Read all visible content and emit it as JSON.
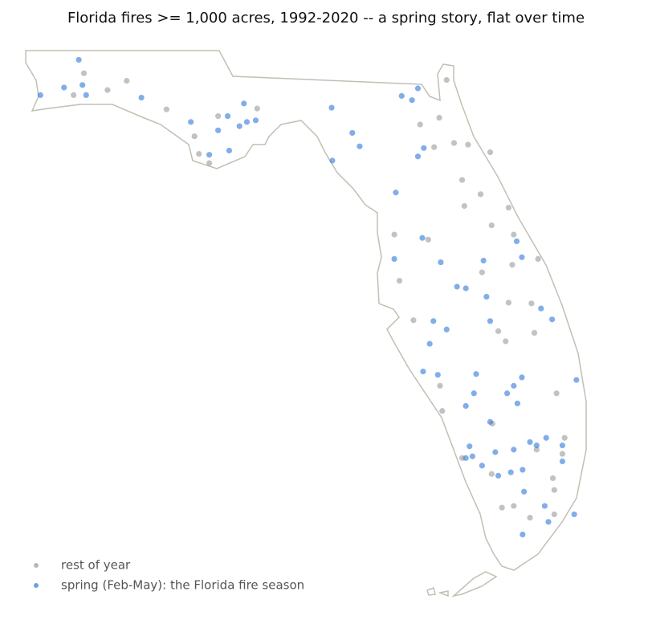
{
  "chart_data": {
    "type": "scatter",
    "title": "Florida fires >= 1,000 acres, 1992-2020 -- a spring story, flat over time",
    "xlim": [
      -87.7,
      -79.9
    ],
    "ylim": [
      24.4,
      31.1
    ],
    "legend": "lower left",
    "series": [
      {
        "name": "rest of year",
        "color": "#9a9a9a",
        "x": [
          -86.95,
          -86.81,
          -86.23,
          -86.49,
          -85.69,
          -85.31,
          -84.99,
          -85.25,
          -85.11,
          -84.46,
          -81.89,
          -82.25,
          -81.99,
          -81.79,
          -81.6,
          -82.06,
          -81.3,
          -81.68,
          -81.43,
          -81.05,
          -81.65,
          -81.28,
          -80.98,
          -80.65,
          -81.0,
          -81.41,
          -82.14,
          -82.6,
          -82.53,
          -82.34,
          -81.05,
          -80.74,
          -81.19,
          -80.7,
          -81.09,
          -81.98,
          -81.95,
          -81.27,
          -80.4,
          -80.32,
          -80.45,
          -80.43,
          -80.98,
          -81.14,
          -80.76,
          -81.28,
          -80.43,
          -80.67,
          -81.68,
          -80.29
        ],
        "y": [
          30.47,
          30.73,
          30.64,
          30.53,
          30.3,
          29.98,
          30.22,
          29.77,
          29.66,
          30.31,
          30.65,
          30.12,
          30.2,
          29.9,
          29.88,
          29.85,
          29.79,
          29.46,
          29.29,
          29.13,
          29.15,
          28.92,
          28.81,
          28.52,
          28.45,
          28.36,
          28.75,
          28.81,
          28.26,
          27.79,
          28.0,
          27.99,
          27.66,
          27.64,
          27.54,
          27.01,
          26.71,
          26.56,
          26.92,
          26.2,
          25.91,
          25.77,
          25.58,
          25.56,
          25.44,
          25.96,
          25.48,
          26.25,
          26.15,
          26.39
        ]
      },
      {
        "name": "spring (Feb-May): the Florida fire season",
        "color": "#2f78d8",
        "x": [
          -86.88,
          -87.4,
          -87.08,
          -86.83,
          -86.78,
          -86.03,
          -85.36,
          -84.99,
          -84.86,
          -84.7,
          -84.6,
          -84.48,
          -84.64,
          -84.84,
          -85.11,
          -83.45,
          -83.07,
          -83.17,
          -83.44,
          -82.28,
          -82.36,
          -82.5,
          -82.2,
          -82.28,
          -82.58,
          -82.22,
          -82.6,
          -81.97,
          -81.75,
          -81.39,
          -81.63,
          -82.07,
          -81.89,
          -82.12,
          -82.21,
          -82.01,
          -81.35,
          -81.3,
          -80.94,
          -80.87,
          -80.61,
          -80.46,
          -80.13,
          -80.87,
          -81.07,
          -80.93,
          -81.49,
          -81.52,
          -81.63,
          -81.3,
          -80.76,
          -80.67,
          -80.98,
          -81.23,
          -81.58,
          -81.63,
          -81.41,
          -81.02,
          -80.86,
          -81.19,
          -81.54,
          -80.32,
          -80.54,
          -80.84,
          -80.56,
          -80.51,
          -80.16,
          -80.86,
          -80.32,
          -80.98
        ],
        "y": [
          30.89,
          30.47,
          30.56,
          30.59,
          30.47,
          30.44,
          30.15,
          30.05,
          30.22,
          30.1,
          30.15,
          30.17,
          30.37,
          29.81,
          29.76,
          30.32,
          29.86,
          30.02,
          29.69,
          30.55,
          30.41,
          30.46,
          29.84,
          29.74,
          29.31,
          28.77,
          28.52,
          28.48,
          28.19,
          28.5,
          28.17,
          27.78,
          27.68,
          27.51,
          27.18,
          27.14,
          28.07,
          27.78,
          28.73,
          28.54,
          27.93,
          27.8,
          27.08,
          27.11,
          26.92,
          26.8,
          27.15,
          26.92,
          26.77,
          26.58,
          26.34,
          26.3,
          26.25,
          26.22,
          26.29,
          26.15,
          26.06,
          25.98,
          26.01,
          25.94,
          26.17,
          26.3,
          26.39,
          25.75,
          25.58,
          25.39,
          25.48,
          25.24,
          26.11,
          27.01
        ]
      }
    ]
  }
}
